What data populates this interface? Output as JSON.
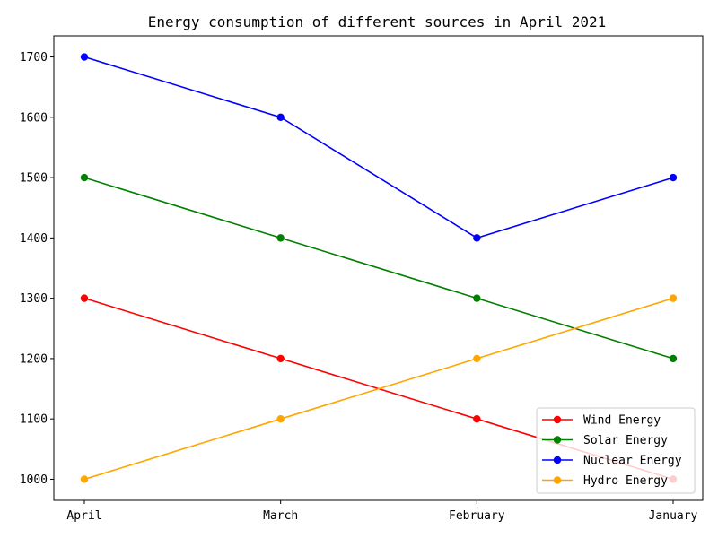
{
  "chart_data": {
    "type": "line",
    "title": "Energy consumption of different sources in April 2021",
    "xlabel": "",
    "ylabel": "",
    "categories": [
      "April",
      "March",
      "February",
      "January"
    ],
    "series": [
      {
        "name": "Wind Energy",
        "color": "#ff0000",
        "values": [
          1300,
          1200,
          1100,
          1000
        ]
      },
      {
        "name": "Solar Energy",
        "color": "#008000",
        "values": [
          1500,
          1400,
          1300,
          1200
        ]
      },
      {
        "name": "Nuclear Energy",
        "color": "#0000ff",
        "values": [
          1700,
          1600,
          1400,
          1500
        ]
      },
      {
        "name": "Hydro Energy",
        "color": "#ffa500",
        "values": [
          1000,
          1100,
          1200,
          1300
        ]
      }
    ],
    "ylim": [
      965,
      1735
    ],
    "yticks": [
      1000,
      1100,
      1200,
      1300,
      1400,
      1500,
      1600,
      1700
    ],
    "grid": false,
    "legend_position": "lower-right",
    "marker": "circle"
  }
}
